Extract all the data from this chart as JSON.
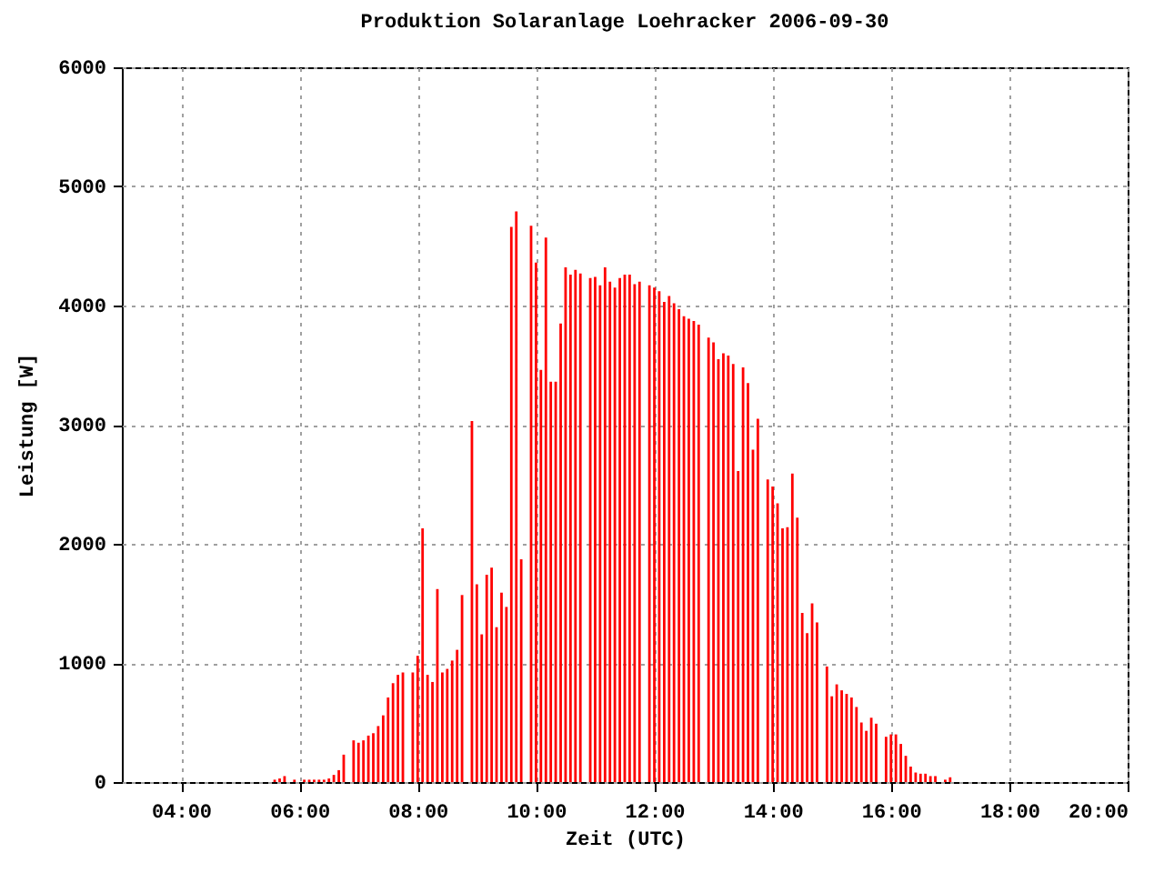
{
  "chart_data": {
    "type": "bar",
    "title": "Produktion Solaranlage Loehracker 2006-09-30",
    "xlabel": "Zeit (UTC)",
    "ylabel": "Leistung [W]",
    "x": [
      5.583,
      5.667,
      5.75,
      5.917,
      6.083,
      6.167,
      6.25,
      6.333,
      6.417,
      6.5,
      6.583,
      6.667,
      6.75,
      6.917,
      7.0,
      7.083,
      7.167,
      7.25,
      7.333,
      7.417,
      7.5,
      7.583,
      7.667,
      7.75,
      7.917,
      8.0,
      8.083,
      8.167,
      8.25,
      8.333,
      8.417,
      8.5,
      8.583,
      8.667,
      8.75,
      8.917,
      9.0,
      9.083,
      9.167,
      9.25,
      9.333,
      9.417,
      9.5,
      9.583,
      9.667,
      9.75,
      9.917,
      10.0,
      10.083,
      10.167,
      10.25,
      10.333,
      10.417,
      10.5,
      10.583,
      10.667,
      10.75,
      10.917,
      11.0,
      11.083,
      11.167,
      11.25,
      11.333,
      11.417,
      11.5,
      11.583,
      11.667,
      11.75,
      11.917,
      12.0,
      12.083,
      12.167,
      12.25,
      12.333,
      12.417,
      12.5,
      12.583,
      12.667,
      12.75,
      12.917,
      13.0,
      13.083,
      13.167,
      13.25,
      13.333,
      13.417,
      13.5,
      13.583,
      13.667,
      13.75,
      13.917,
      14.0,
      14.083,
      14.167,
      14.25,
      14.333,
      14.417,
      14.5,
      14.583,
      14.667,
      14.75,
      14.917,
      15.0,
      15.083,
      15.167,
      15.25,
      15.333,
      15.417,
      15.5,
      15.583,
      15.667,
      15.75,
      15.917,
      16.0,
      16.083,
      16.167,
      16.25,
      16.333,
      16.417,
      16.5,
      16.583,
      16.667,
      16.75,
      16.917,
      17.0
    ],
    "series": [
      {
        "color": "#ff0000",
        "values": [
          20,
          30,
          50,
          20,
          20,
          20,
          20,
          20,
          20,
          30,
          60,
          100,
          230,
          350,
          330,
          350,
          390,
          410,
          470,
          560,
          710,
          830,
          900,
          920,
          920,
          1060,
          2130,
          900,
          840,
          1620,
          920,
          950,
          1020,
          1110,
          1570,
          3030,
          1660,
          1240,
          1740,
          1800,
          1300,
          1590,
          1470,
          4660,
          4790,
          1870,
          4670,
          4360,
          3460,
          4570,
          3360,
          3360,
          3850,
          4320,
          4260,
          4300,
          4270,
          4230,
          4240,
          4170,
          4320,
          4200,
          4150,
          4230,
          4260,
          4260,
          4180,
          4200,
          4170,
          4150,
          4120,
          4030,
          4080,
          4020,
          3970,
          3910,
          3890,
          3870,
          3840,
          3730,
          3690,
          3550,
          3600,
          3580,
          3510,
          2610,
          3480,
          3350,
          2790,
          3050,
          2540,
          2480,
          2340,
          2130,
          2140,
          2590,
          2220,
          1420,
          1250,
          1500,
          1340,
          970,
          720,
          820,
          770,
          740,
          710,
          630,
          500,
          430,
          540,
          490,
          380,
          400,
          400,
          320,
          220,
          130,
          80,
          70,
          70,
          50,
          50,
          20,
          40
        ]
      }
    ],
    "xlim": [
      3,
      20
    ],
    "xticks": [
      {
        "value": 4,
        "label": "04:00"
      },
      {
        "value": 6,
        "label": "06:00"
      },
      {
        "value": 8,
        "label": "08:00"
      },
      {
        "value": 10,
        "label": "10:00"
      },
      {
        "value": 12,
        "label": "12:00"
      },
      {
        "value": 14,
        "label": "14:00"
      },
      {
        "value": 16,
        "label": "16:00"
      },
      {
        "value": 18,
        "label": "18:00"
      },
      {
        "value": 20,
        "label": "20:00"
      }
    ],
    "ylim": [
      0,
      6000
    ],
    "yticks": [
      0,
      1000,
      2000,
      3000,
      4000,
      5000,
      6000
    ],
    "grid": true
  }
}
